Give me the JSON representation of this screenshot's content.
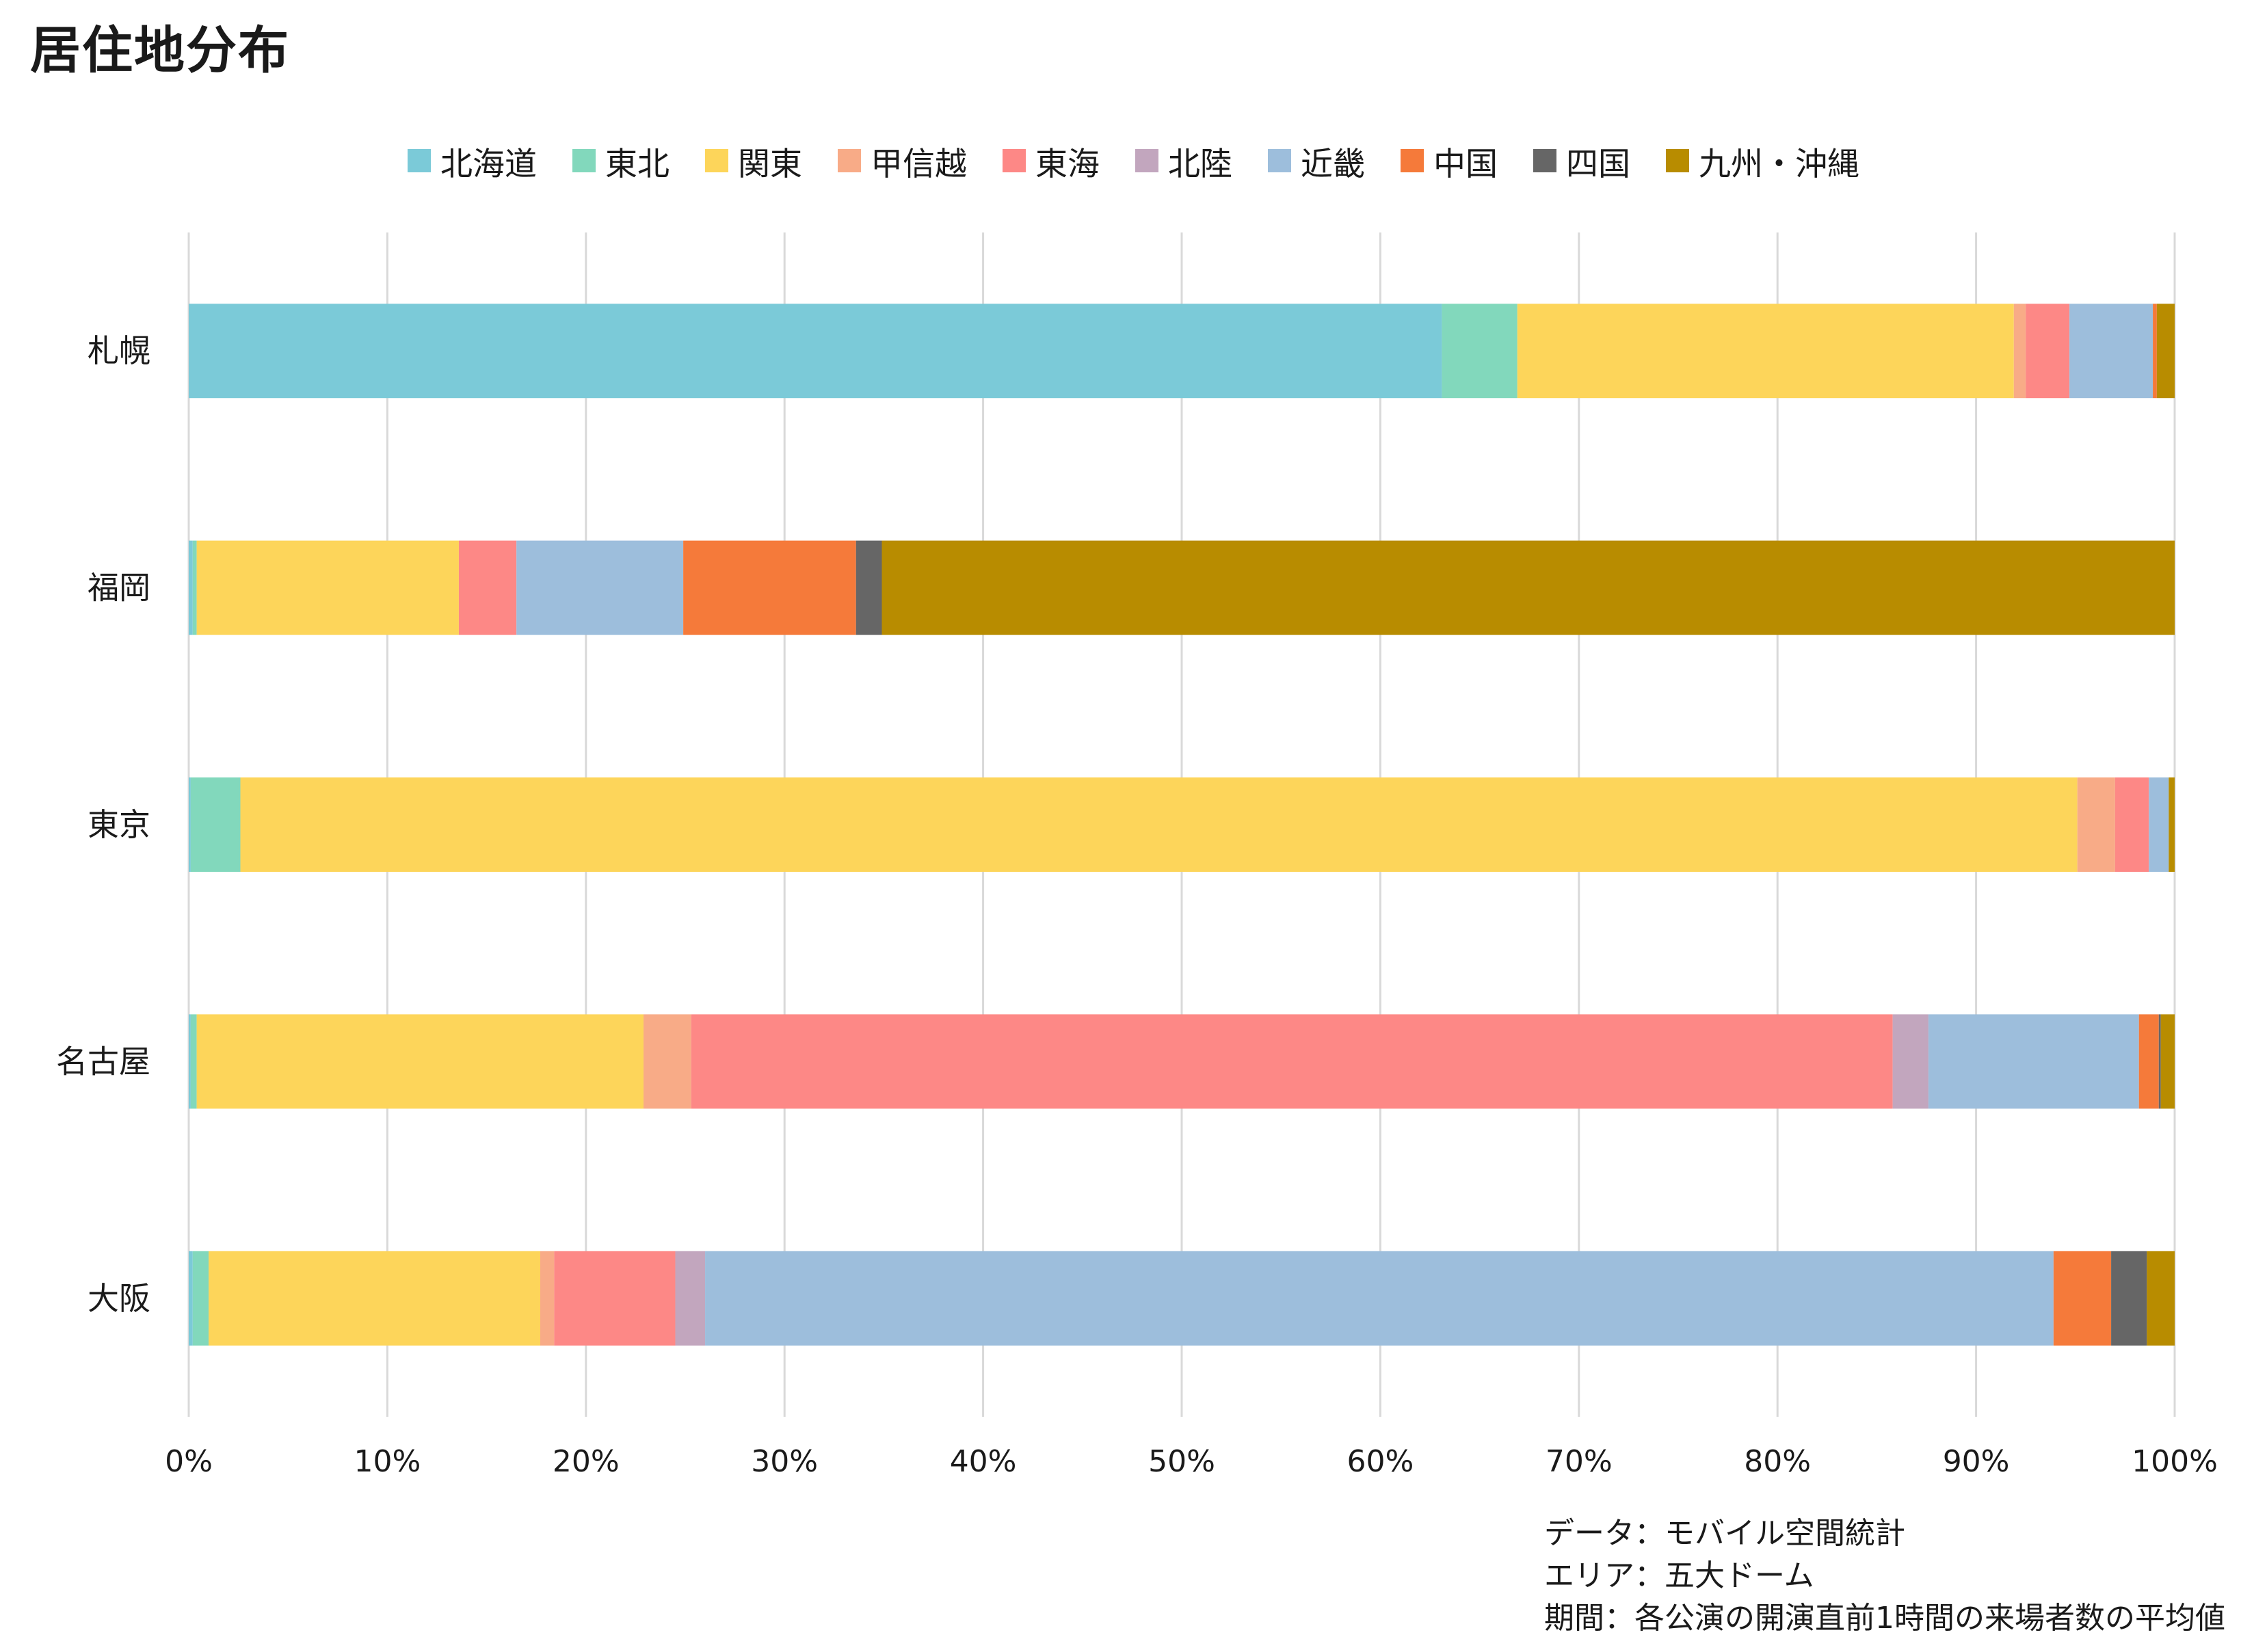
{
  "chart_data": {
    "type": "bar",
    "orientation": "horizontal",
    "stacked": true,
    "percent": true,
    "title": "居住地分布",
    "categories": [
      "札幌",
      "福岡",
      "東京",
      "名古屋",
      "大阪"
    ],
    "series": [
      {
        "name": "北海道",
        "color": "#7BCAD8",
        "values": [
          63.1,
          0.2,
          0.1,
          0.1,
          0.2
        ]
      },
      {
        "name": "東北",
        "color": "#82D8BC",
        "values": [
          3.8,
          0.2,
          2.5,
          0.3,
          0.8
        ]
      },
      {
        "name": "関東",
        "color": "#FDD55A",
        "values": [
          25.0,
          13.2,
          92.5,
          22.5,
          16.7
        ]
      },
      {
        "name": "甲信越",
        "color": "#F8AB87",
        "values": [
          0.6,
          0.0,
          1.9,
          2.4,
          0.7
        ]
      },
      {
        "name": "東海",
        "color": "#FD8886",
        "values": [
          2.2,
          2.9,
          1.7,
          60.5,
          6.1
        ]
      },
      {
        "name": "北陸",
        "color": "#C2A6BE",
        "values": [
          0.0,
          0.0,
          0.0,
          1.8,
          1.5
        ]
      },
      {
        "name": "近畿",
        "color": "#9DBEDC",
        "values": [
          4.2,
          8.4,
          1.0,
          10.6,
          67.9
        ]
      },
      {
        "name": "中国",
        "color": "#F57A3A",
        "values": [
          0.2,
          8.7,
          0.0,
          1.0,
          2.9
        ]
      },
      {
        "name": "四国",
        "color": "#666666",
        "values": [
          0.0,
          1.3,
          0.0,
          0.1,
          1.8
        ]
      },
      {
        "name": "九州・沖縄",
        "color": "#B88C00",
        "values": [
          0.9,
          65.1,
          0.3,
          0.7,
          1.4
        ]
      }
    ],
    "xlim": [
      0,
      100
    ],
    "x_ticks": [
      "0%",
      "10%",
      "20%",
      "30%",
      "40%",
      "50%",
      "60%",
      "70%",
      "80%",
      "90%",
      "100%"
    ],
    "grid": "vertical",
    "legend_position": "top",
    "notes": [
      "データ：モバイル空間統計",
      "エリア：五大ドーム",
      "期間：各公演の開演直前1時間の来場者数の平均値"
    ]
  }
}
